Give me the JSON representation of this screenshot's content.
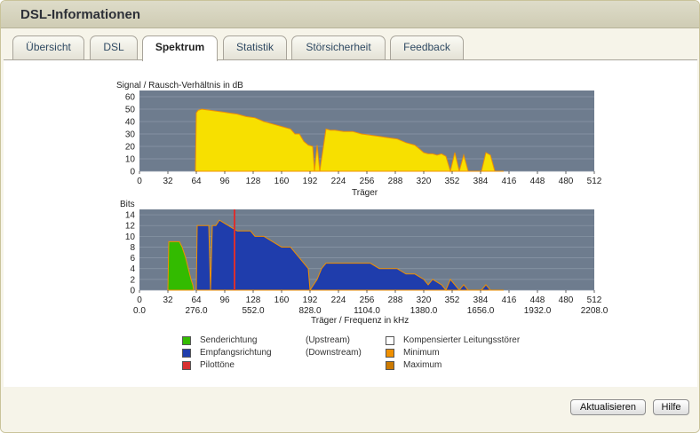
{
  "window": {
    "title": "DSL-Informationen"
  },
  "tabs": [
    {
      "label": "Übersicht",
      "active": false
    },
    {
      "label": "DSL",
      "active": false
    },
    {
      "label": "Spektrum",
      "active": true
    },
    {
      "label": "Statistik",
      "active": false
    },
    {
      "label": "Störsicherheit",
      "active": false
    },
    {
      "label": "Feedback",
      "active": false
    }
  ],
  "chart_data": [
    {
      "type": "area",
      "ylabel": "Signal / Rausch-Verhältnis in dB",
      "xlabel": "Träger",
      "xlim": [
        0,
        512
      ],
      "ylim": [
        0,
        65
      ],
      "yticks": [
        "0",
        "10",
        "20",
        "30",
        "40",
        "50",
        "60"
      ],
      "xticks": [
        "0",
        "32",
        "64",
        "96",
        "128",
        "160",
        "192",
        "224",
        "256",
        "288",
        "320",
        "352",
        "384",
        "416",
        "448",
        "480",
        "512"
      ],
      "colors": {
        "fill": "#f7e000",
        "edge": "#f09000",
        "background": "#6e7c8e"
      },
      "series": [
        {
          "x": [
            63,
            64,
            66,
            70,
            80,
            90,
            100,
            110,
            120,
            130,
            140,
            150,
            160,
            170,
            175,
            180,
            185,
            190,
            195,
            197,
            200,
            203,
            210,
            215,
            220,
            230,
            240,
            250,
            260,
            270,
            280,
            290,
            300,
            310,
            315,
            320,
            325,
            330,
            335,
            340,
            345,
            350,
            355,
            360,
            365,
            370,
            375,
            380,
            385,
            390,
            395,
            400,
            410
          ],
          "y": [
            0,
            47,
            49,
            50,
            49,
            48,
            47,
            46,
            44,
            43,
            40,
            38,
            36,
            34,
            30,
            30,
            24,
            21,
            20,
            0,
            21,
            0,
            34,
            33,
            33,
            32,
            32,
            30,
            29,
            28,
            27,
            26,
            23,
            21,
            18,
            15,
            14,
            14,
            13,
            14,
            12,
            0,
            15,
            0,
            13,
            0,
            0,
            0,
            0,
            15,
            13,
            0,
            0
          ]
        }
      ]
    },
    {
      "type": "area",
      "ylabel": "Bits",
      "xlabel": "Träger / Frequenz in kHz",
      "xlim": [
        0,
        512
      ],
      "ylim": [
        0,
        15
      ],
      "yticks": [
        "0",
        "2",
        "4",
        "6",
        "8",
        "10",
        "12",
        "14"
      ],
      "xticks": [
        "0",
        "32",
        "64",
        "96",
        "128",
        "160",
        "192",
        "224",
        "256",
        "288",
        "320",
        "352",
        "384",
        "416",
        "448",
        "480",
        "512"
      ],
      "xticks2": [
        "0.0",
        "276.0",
        "552.0",
        "828.0",
        "1104.0",
        "1380.0",
        "1656.0",
        "1932.0",
        "2208.0"
      ],
      "colors": {
        "upstream": "#33bb00",
        "downstream": "#1f3dac",
        "pilot": "#d83030",
        "edge": "#f09000",
        "background": "#6e7c8e"
      },
      "series": [
        {
          "name": "Senderichtung",
          "x": [
            32,
            33,
            36,
            45,
            48,
            52,
            55,
            58,
            60,
            61
          ],
          "y": [
            0,
            9,
            9,
            9,
            8,
            6,
            4,
            2,
            1,
            0
          ]
        },
        {
          "name": "Empfangsrichtung",
          "x": [
            64,
            65,
            70,
            78,
            80,
            82,
            86,
            90,
            100,
            110,
            120,
            125,
            130,
            140,
            150,
            160,
            170,
            180,
            190,
            192,
            200,
            205,
            210,
            220,
            230,
            240,
            250,
            260,
            270,
            280,
            290,
            300,
            310,
            320,
            325,
            330,
            340,
            345,
            350,
            355,
            360,
            365,
            370,
            385,
            390,
            395,
            410
          ],
          "y": [
            0,
            12,
            12,
            12,
            0,
            12,
            12,
            13,
            12,
            11,
            11,
            11,
            10,
            10,
            9,
            8,
            8,
            6,
            4,
            0,
            2,
            4,
            5,
            5,
            5,
            5,
            5,
            5,
            4,
            4,
            4,
            3,
            3,
            2,
            1,
            2,
            1,
            0,
            2,
            1,
            0,
            1,
            0,
            0,
            1,
            0,
            0
          ]
        },
        {
          "name": "Pilottöne",
          "x": [
            107
          ],
          "y": [
            15
          ]
        }
      ],
      "legend": [
        {
          "label": "Senderichtung",
          "note": "(Upstream)",
          "color": "#33bb00"
        },
        {
          "label": "Empfangsrichtung",
          "note": "(Downstream)",
          "color": "#1f3dac"
        },
        {
          "label": "Pilottöne",
          "note": "",
          "color": "#d83030"
        },
        {
          "label": "Kompensierter Leitungsstörer",
          "color": "#ffffff"
        },
        {
          "label": "Minimum",
          "color": "#f09000"
        },
        {
          "label": "Maximum",
          "color": "#cc7a00"
        }
      ]
    }
  ],
  "buttons": {
    "refresh": "Aktualisieren",
    "help": "Hilfe"
  }
}
